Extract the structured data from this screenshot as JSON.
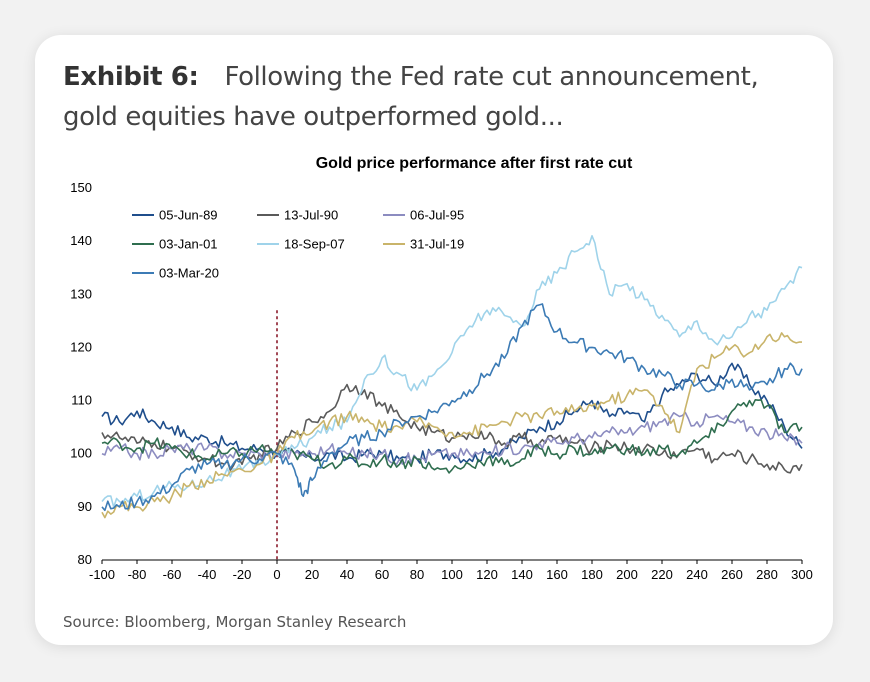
{
  "header": {
    "exhibit_label": "Exhibit 6:",
    "title": "Following the Fed rate cut announcement, gold equities have outperformed gold..."
  },
  "source": "Source: Bloomberg, Morgan Stanley Research",
  "chart_data": {
    "type": "line",
    "title": "Gold price performance after first rate cut",
    "xlabel": "",
    "ylabel": "",
    "xlim": [
      -100,
      300
    ],
    "ylim": [
      80,
      150
    ],
    "x_ticks": [
      -100,
      -80,
      -60,
      -40,
      -20,
      0,
      20,
      40,
      60,
      80,
      100,
      120,
      140,
      160,
      180,
      200,
      220,
      240,
      260,
      280,
      300
    ],
    "y_ticks": [
      80,
      90,
      100,
      110,
      120,
      130,
      140,
      150
    ],
    "grid": false,
    "legend_position": "top-left",
    "vertical_marker": {
      "x": 0,
      "style": "dashed",
      "color": "#8b1c2c"
    },
    "series": [
      {
        "name": "05-Jun-89",
        "color": "#1f4e8c",
        "x": [
          -100,
          -90,
          -80,
          -70,
          -60,
          -50,
          -40,
          -30,
          -20,
          -10,
          0,
          10,
          20,
          30,
          40,
          50,
          60,
          70,
          80,
          90,
          100,
          110,
          120,
          130,
          140,
          150,
          160,
          170,
          180,
          190,
          200,
          210,
          220,
          230,
          240,
          250,
          260,
          270,
          280,
          290,
          300
        ],
        "y": [
          107,
          106,
          108,
          106,
          105,
          103,
          103,
          102,
          101,
          101,
          100,
          100,
          99,
          100,
          99,
          100,
          100,
          99,
          99,
          100,
          100,
          99,
          100,
          101,
          103,
          105,
          106,
          108,
          110,
          107,
          108,
          106,
          111,
          113,
          115,
          113,
          117,
          113,
          110,
          105,
          101
        ]
      },
      {
        "name": "13-Jul-90",
        "color": "#5a5a5a",
        "x": [
          -100,
          -90,
          -80,
          -70,
          -60,
          -50,
          -40,
          -30,
          -20,
          -10,
          0,
          10,
          20,
          30,
          40,
          50,
          60,
          70,
          80,
          90,
          100,
          110,
          120,
          130,
          140,
          150,
          160,
          170,
          180,
          190,
          200,
          210,
          220,
          230,
          240,
          250,
          260,
          270,
          280,
          290,
          300
        ],
        "y": [
          104,
          103,
          102,
          102,
          101,
          100,
          99,
          98,
          98,
          100,
          101,
          104,
          106,
          108,
          113,
          112,
          109,
          107,
          105,
          104,
          103,
          104,
          103,
          102,
          103,
          102,
          103,
          102,
          101,
          102,
          101,
          101,
          100,
          100,
          101,
          99,
          100,
          99,
          98,
          97,
          98
        ]
      },
      {
        "name": "06-Jul-95",
        "color": "#8c8cc0",
        "x": [
          -100,
          -90,
          -80,
          -70,
          -60,
          -50,
          -40,
          -30,
          -20,
          -10,
          0,
          10,
          20,
          30,
          40,
          50,
          60,
          70,
          80,
          90,
          100,
          110,
          120,
          130,
          140,
          150,
          160,
          170,
          180,
          190,
          200,
          210,
          220,
          230,
          240,
          250,
          260,
          270,
          280,
          290,
          300
        ],
        "y": [
          100,
          101,
          100,
          100,
          101,
          101,
          101,
          100,
          100,
          100,
          100,
          100,
          100,
          101,
          100,
          100,
          100,
          99,
          99,
          100,
          100,
          100,
          100,
          101,
          101,
          102,
          102,
          103,
          103,
          104,
          104,
          105,
          106,
          107,
          106,
          107,
          106,
          105,
          104,
          103,
          102
        ]
      },
      {
        "name": "03-Jan-01",
        "color": "#2f6e4f",
        "x": [
          -100,
          -90,
          -80,
          -70,
          -60,
          -50,
          -40,
          -30,
          -20,
          -10,
          0,
          10,
          20,
          30,
          40,
          50,
          60,
          70,
          80,
          90,
          100,
          110,
          120,
          130,
          140,
          150,
          160,
          170,
          180,
          190,
          200,
          210,
          220,
          230,
          240,
          250,
          260,
          270,
          280,
          290,
          300
        ],
        "y": [
          102,
          102,
          101,
          102,
          101,
          100,
          99,
          100,
          100,
          101,
          100,
          100,
          99,
          98,
          99,
          98,
          99,
          98,
          99,
          97,
          97,
          98,
          99,
          98,
          99,
          101,
          100,
          101,
          100,
          101,
          101,
          100,
          101,
          100,
          102,
          104,
          108,
          110,
          109,
          104,
          105
        ]
      },
      {
        "name": "18-Sep-07",
        "color": "#9fd3ea",
        "x": [
          -100,
          -90,
          -80,
          -70,
          -60,
          -50,
          -40,
          -30,
          -20,
          -10,
          0,
          10,
          20,
          30,
          40,
          50,
          60,
          70,
          80,
          90,
          100,
          110,
          120,
          130,
          140,
          150,
          160,
          170,
          180,
          190,
          200,
          210,
          220,
          230,
          240,
          250,
          260,
          270,
          280,
          290,
          300
        ],
        "y": [
          91,
          91,
          92,
          93,
          94,
          94,
          95,
          96,
          97,
          98,
          100,
          101,
          103,
          105,
          106,
          114,
          118,
          115,
          112,
          115,
          119,
          124,
          127,
          126,
          124,
          131,
          134,
          138,
          141,
          130,
          132,
          129,
          126,
          122,
          125,
          121,
          122,
          126,
          127,
          131,
          135
        ]
      },
      {
        "name": "31-Jul-19",
        "color": "#c9b46a",
        "x": [
          -100,
          -90,
          -80,
          -70,
          -60,
          -50,
          -40,
          -30,
          -20,
          -10,
          0,
          10,
          20,
          30,
          40,
          50,
          60,
          70,
          80,
          90,
          100,
          110,
          120,
          130,
          140,
          150,
          160,
          170,
          180,
          190,
          200,
          210,
          220,
          230,
          240,
          250,
          260,
          270,
          280,
          290,
          300
        ],
        "y": [
          89,
          90,
          90,
          91,
          92,
          94,
          95,
          96,
          97,
          98,
          100,
          103,
          104,
          106,
          107,
          106,
          105,
          105,
          106,
          105,
          104,
          104,
          105,
          106,
          107,
          107,
          108,
          108,
          109,
          110,
          111,
          112,
          109,
          104,
          116,
          118,
          120,
          119,
          122,
          122,
          121
        ]
      },
      {
        "name": "03-Mar-20",
        "color": "#3c7bb5",
        "x": [
          -100,
          -90,
          -80,
          -70,
          -60,
          -50,
          -40,
          -30,
          -20,
          -10,
          0,
          10,
          15,
          20,
          30,
          40,
          50,
          60,
          70,
          80,
          90,
          100,
          110,
          120,
          130,
          140,
          150,
          160,
          170,
          180,
          190,
          200,
          210,
          220,
          230,
          240,
          250,
          260,
          270,
          280,
          290,
          300
        ],
        "y": [
          90,
          90,
          91,
          92,
          94,
          97,
          98,
          98,
          99,
          99,
          100,
          97,
          92,
          95,
          100,
          102,
          103,
          104,
          106,
          107,
          108,
          110,
          112,
          115,
          118,
          124,
          128,
          123,
          121,
          120,
          119,
          118,
          116,
          115,
          113,
          113,
          112,
          114,
          112,
          113,
          116,
          116
        ]
      }
    ]
  }
}
